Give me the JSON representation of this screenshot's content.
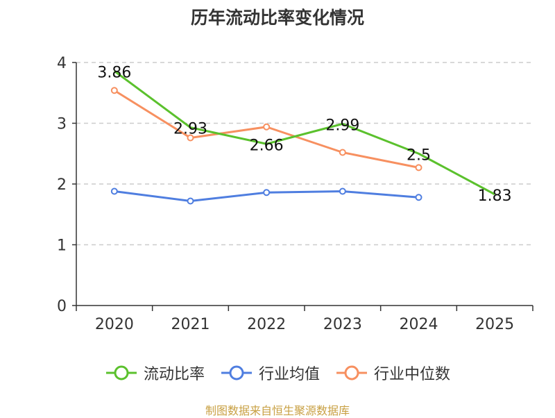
{
  "title": "历年流动比率变化情况",
  "source": "制图数据来自恒生聚源数据库",
  "colors": {
    "axis": "#333333",
    "grid": "#cccccc",
    "text": "#333333"
  },
  "chart_data": {
    "type": "line",
    "title": "历年流动比率变化情况",
    "categories": [
      "2020",
      "2021",
      "2022",
      "2023",
      "2024",
      "2025"
    ],
    "ylim": [
      0,
      4
    ],
    "yticks": [
      "0",
      "1",
      "2",
      "3",
      "4"
    ],
    "grid": true,
    "legend_position": "bottom",
    "series": [
      {
        "name": "流动比率",
        "color": "#5bc12d",
        "show_labels": true,
        "markers": false,
        "values": [
          3.86,
          2.93,
          2.66,
          2.99,
          2.5,
          1.83
        ],
        "labels": [
          "3.86",
          "2.93",
          "2.66",
          "2.99",
          "2.5",
          "1.83"
        ]
      },
      {
        "name": "行业均值",
        "color": "#4f7ee0",
        "show_labels": false,
        "markers": true,
        "values": [
          1.88,
          1.72,
          1.86,
          1.88,
          1.78,
          null
        ]
      },
      {
        "name": "行业中位数",
        "color": "#f79060",
        "show_labels": false,
        "markers": true,
        "values": [
          3.54,
          2.76,
          2.94,
          2.52,
          2.27,
          null
        ]
      }
    ]
  }
}
